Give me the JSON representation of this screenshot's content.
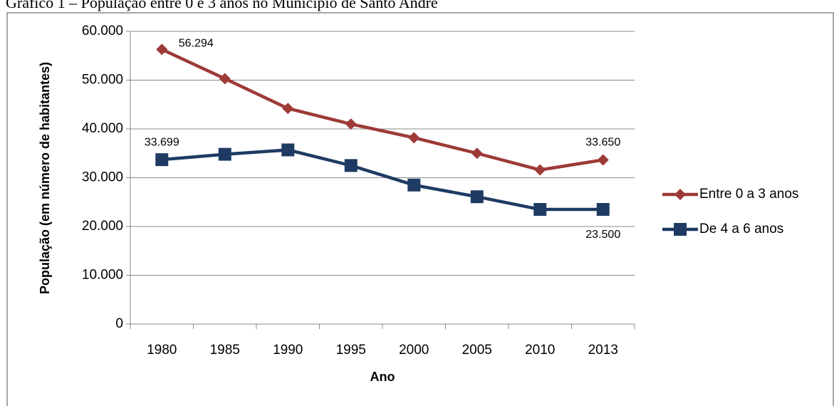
{
  "chart_data": {
    "type": "line",
    "title": "Gráfico 1 – População entre 0 e 3 anos no Município de Santo André",
    "x_label": "Ano",
    "y_label": "População (em número de habitantes)",
    "categories": [
      "1980",
      "1985",
      "1990",
      "1995",
      "2000",
      "2005",
      "2010",
      "2013"
    ],
    "series": [
      {
        "name": "Entre 0 a 3 anos",
        "color": "#9e3a37",
        "marker": "diamond",
        "values": [
          56294,
          50300,
          44200,
          41000,
          38200,
          35000,
          31600,
          33650
        ],
        "value_labels": [
          "56.294",
          null,
          null,
          null,
          null,
          null,
          null,
          "33.650"
        ]
      },
      {
        "name": "De 4 a 6 anos",
        "color": "#1f3b63",
        "marker": "square",
        "values": [
          33699,
          34800,
          35700,
          32500,
          28500,
          26100,
          23500,
          23500
        ],
        "value_labels": [
          "33.699",
          null,
          null,
          null,
          null,
          null,
          null,
          "23.500"
        ]
      }
    ],
    "ylim": [
      0,
      60000
    ],
    "yticks": [
      0,
      {
        "value": 10000,
        "label": "10.000"
      },
      {
        "value": 20000,
        "label": "20.000"
      },
      {
        "value": 30000,
        "label": "30.000"
      },
      {
        "value": 40000,
        "label": "40.000"
      },
      {
        "value": 50000,
        "label": "50.000"
      },
      {
        "value": 60000,
        "label": "60.000"
      }
    ],
    "grid": true,
    "legend": "right"
  }
}
